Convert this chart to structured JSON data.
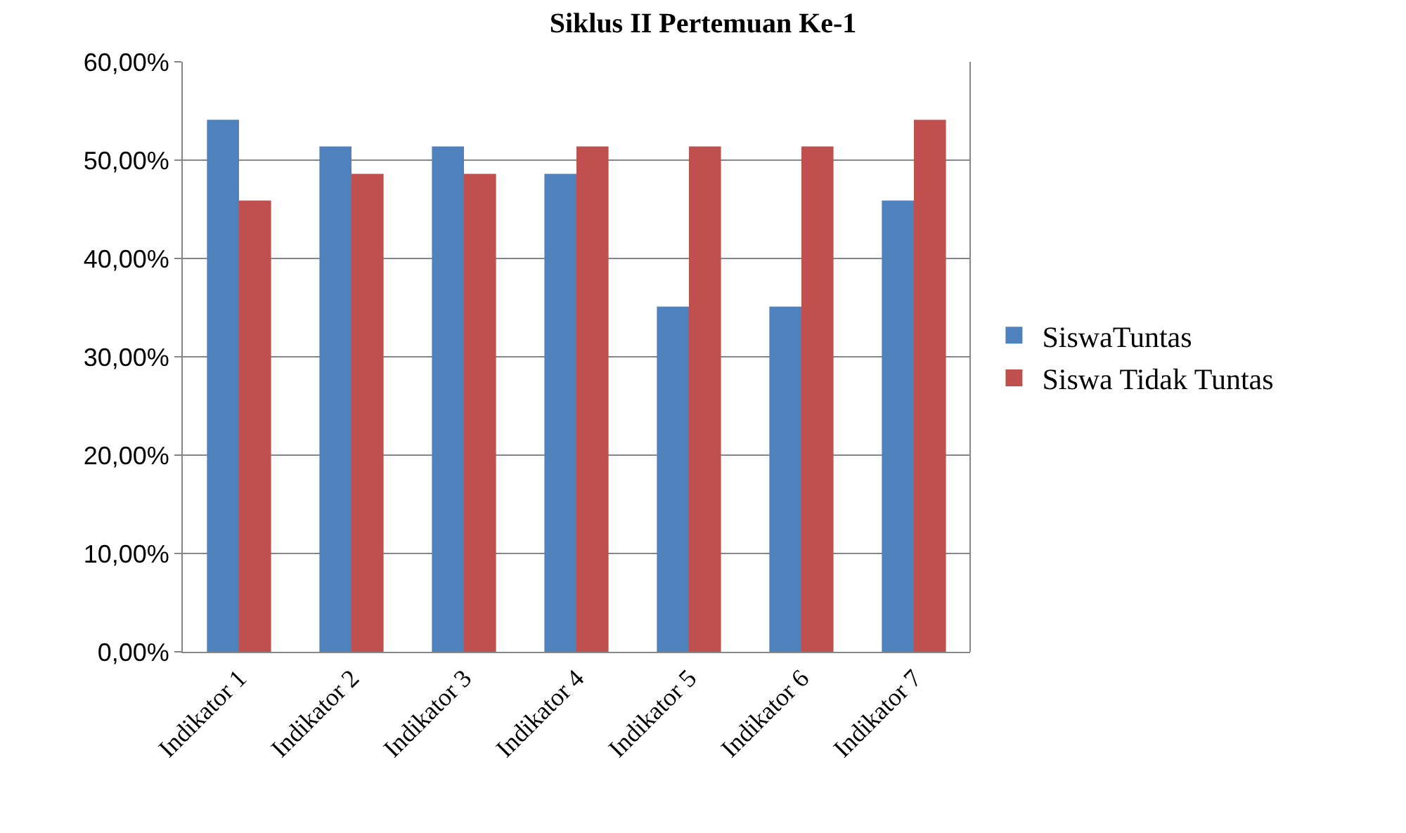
{
  "chart_data": {
    "type": "bar",
    "title": "Siklus II Pertemuan Ke-1",
    "categories": [
      "Indikator 1",
      "Indikator 2",
      "Indikator 3",
      "Indikator 4",
      "Indikator 5",
      "Indikator 6",
      "Indikator 7"
    ],
    "series": [
      {
        "name": "SiswaTuntas",
        "color": "#4f81bd",
        "values": [
          54.1,
          51.4,
          51.4,
          48.6,
          35.1,
          35.1,
          45.9
        ]
      },
      {
        "name": "Siswa Tidak Tuntas",
        "color": "#c0504d",
        "values": [
          45.9,
          48.6,
          48.6,
          51.4,
          51.4,
          51.4,
          54.1
        ]
      }
    ],
    "ylim": [
      0,
      60
    ],
    "yticks": [
      {
        "value": 0,
        "label": "0,00%"
      },
      {
        "value": 10,
        "label": "10,00%"
      },
      {
        "value": 20,
        "label": "20,00%"
      },
      {
        "value": 30,
        "label": "30,00%"
      },
      {
        "value": 40,
        "label": "40,00%"
      },
      {
        "value": 50,
        "label": "50,00%"
      },
      {
        "value": 60,
        "label": "60,00%"
      }
    ],
    "grid": "y",
    "legend": "right"
  }
}
